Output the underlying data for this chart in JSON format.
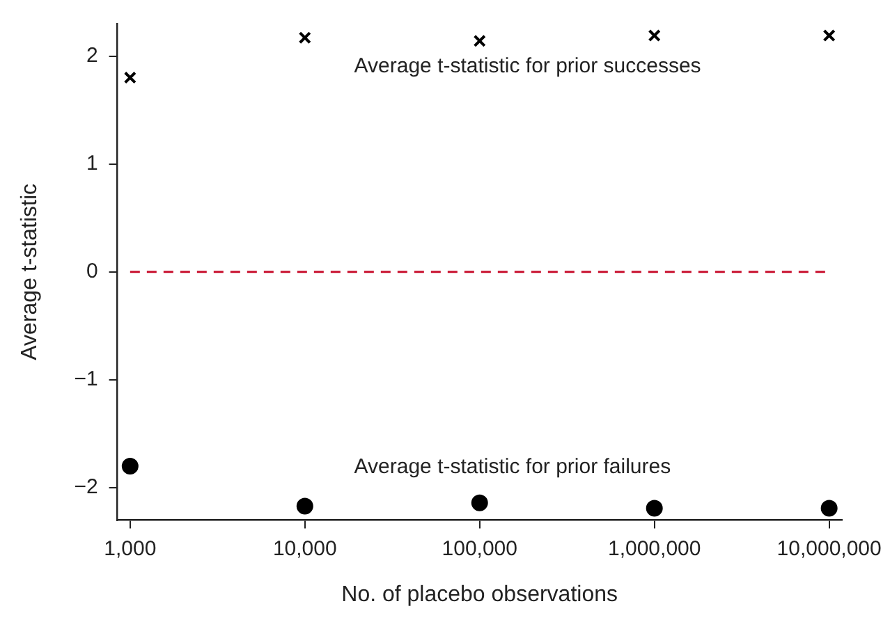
{
  "chart_data": {
    "type": "scatter",
    "xlabel": "No. of placebo observations",
    "ylabel": "Average t-statistic",
    "x": [
      1000,
      10000,
      100000,
      1000000,
      10000000
    ],
    "series": [
      {
        "name": "Average t-statistic for prior successes",
        "color": "#000000",
        "marker": "cross",
        "values": [
          1.8,
          2.17,
          2.14,
          2.19,
          2.19
        ]
      },
      {
        "name": "Average t-statistic for prior failures",
        "color": "#000000",
        "marker": "circle",
        "values": [
          -1.8,
          -2.17,
          -2.14,
          -2.19,
          -2.19
        ]
      }
    ],
    "log": "x",
    "xlim": [
      846,
      11800000
    ],
    "xticks": [
      {
        "value": 1000,
        "label": "1,000"
      },
      {
        "value": 10000,
        "label": "10,000"
      },
      {
        "value": 100000,
        "label": "100,000"
      },
      {
        "value": 1000000,
        "label": "1,000,000"
      },
      {
        "value": 10000000,
        "label": "10,000,000"
      }
    ],
    "ylim": [
      -2.3,
      2.3
    ],
    "yticks": [
      {
        "value": -2,
        "label": "−2"
      },
      {
        "value": -1,
        "label": "−1"
      },
      0,
      1,
      2
    ],
    "ref_lines": [
      {
        "axis": "y",
        "value": 0,
        "color": "#c8102e",
        "line_style": "dashed"
      }
    ],
    "grid": false,
    "legend": false
  }
}
